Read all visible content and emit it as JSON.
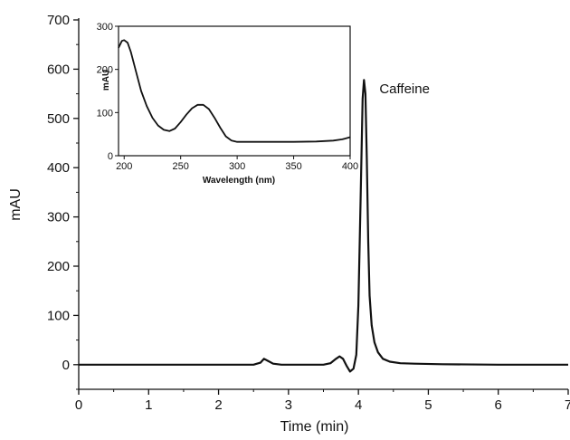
{
  "chart_data": [
    {
      "id": "main",
      "type": "line",
      "title": "",
      "xlabel": "Time (min)",
      "ylabel": "mAU",
      "xlim": [
        0,
        7
      ],
      "ylim": [
        -50,
        700
      ],
      "x_ticks": [
        0,
        1,
        2,
        3,
        4,
        5,
        6,
        7
      ],
      "x_tick_labels": [
        "0",
        "1",
        "2",
        "3",
        "4",
        "5",
        "6",
        "7"
      ],
      "y_ticks": [
        0,
        100,
        200,
        300,
        400,
        500,
        600,
        700
      ],
      "y_tick_labels": [
        "0",
        "100",
        "200",
        "300",
        "400",
        "500",
        "600",
        "700"
      ],
      "grid": false,
      "legend": "none",
      "annotations": [
        {
          "text": "Caffeine",
          "x": 4.3,
          "y": 560
        }
      ],
      "series": [
        {
          "color": "#111111",
          "x": [
            0,
            2.5,
            2.6,
            2.65,
            2.7,
            2.78,
            2.9,
            3.0,
            3.5,
            3.6,
            3.68,
            3.73,
            3.78,
            3.83,
            3.88,
            3.93,
            3.97,
            4.0,
            4.03,
            4.06,
            4.08,
            4.1,
            4.12,
            4.14,
            4.16,
            4.19,
            4.23,
            4.28,
            4.35,
            4.45,
            4.6,
            4.8,
            5.2,
            6.0,
            7.0
          ],
          "y": [
            0,
            0,
            4,
            12,
            8,
            2,
            0,
            0,
            0,
            3,
            12,
            17,
            12,
            -2,
            -14,
            -8,
            20,
            120,
            330,
            540,
            578,
            550,
            420,
            250,
            140,
            80,
            45,
            25,
            12,
            6,
            3,
            2,
            1,
            0,
            0
          ]
        }
      ]
    },
    {
      "id": "inset",
      "type": "line",
      "title": "",
      "xlabel": "Wavelength (nm)",
      "ylabel": "mAU",
      "xlim": [
        195,
        400
      ],
      "ylim": [
        0,
        300
      ],
      "x_ticks": [
        200,
        250,
        300,
        350,
        400
      ],
      "x_tick_labels": [
        "200",
        "250",
        "300",
        "350",
        "400"
      ],
      "y_ticks": [
        0,
        100,
        200,
        300
      ],
      "y_tick_labels": [
        "0",
        "100",
        "200",
        "300"
      ],
      "grid": false,
      "legend": "none",
      "series": [
        {
          "color": "#111111",
          "x": [
            195,
            198,
            200,
            203,
            206,
            210,
            215,
            220,
            225,
            230,
            235,
            240,
            245,
            250,
            255,
            260,
            265,
            270,
            275,
            280,
            285,
            290,
            295,
            300,
            310,
            330,
            350,
            370,
            385,
            393,
            400
          ],
          "y": [
            250,
            266,
            268,
            262,
            240,
            200,
            150,
            115,
            88,
            70,
            60,
            57,
            63,
            78,
            95,
            110,
            118,
            118,
            108,
            88,
            65,
            45,
            35,
            32,
            32,
            32,
            32,
            33,
            35,
            38,
            43
          ]
        }
      ]
    }
  ]
}
